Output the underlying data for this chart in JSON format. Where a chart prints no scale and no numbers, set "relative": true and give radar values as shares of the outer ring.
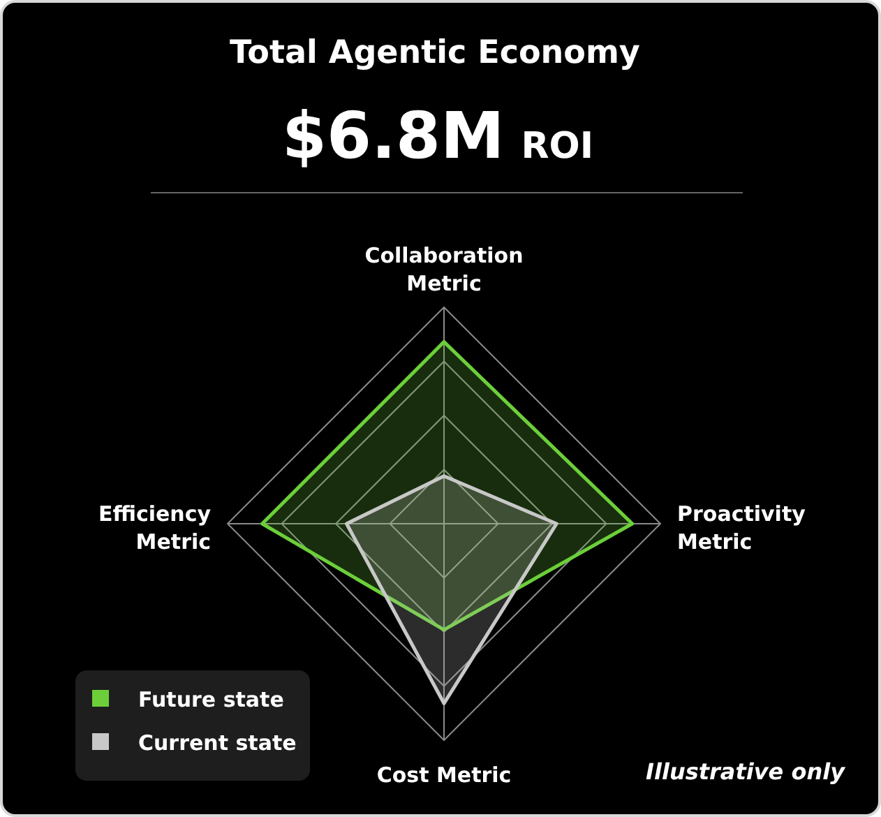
{
  "chart_data": {
    "type": "radar",
    "title": "Total Agentic Economy",
    "subtitle": "$6.8M ROI",
    "relative": true,
    "grid": true,
    "legend": "bottom left",
    "categories": [
      "Collaboration Metric",
      "Proactivity Metric",
      "Cost Metric",
      "Efficiency Metric"
    ],
    "series": [
      {
        "name": "Future state",
        "color": "#6ccf3a",
        "values": [
          0.84,
          0.87,
          0.49,
          0.84
        ]
      },
      {
        "name": "Current state",
        "color": "#c8c8c8",
        "values": [
          0.22,
          0.52,
          0.83,
          0.45
        ]
      }
    ],
    "annotations": [
      "Illustrative only"
    ]
  }
}
